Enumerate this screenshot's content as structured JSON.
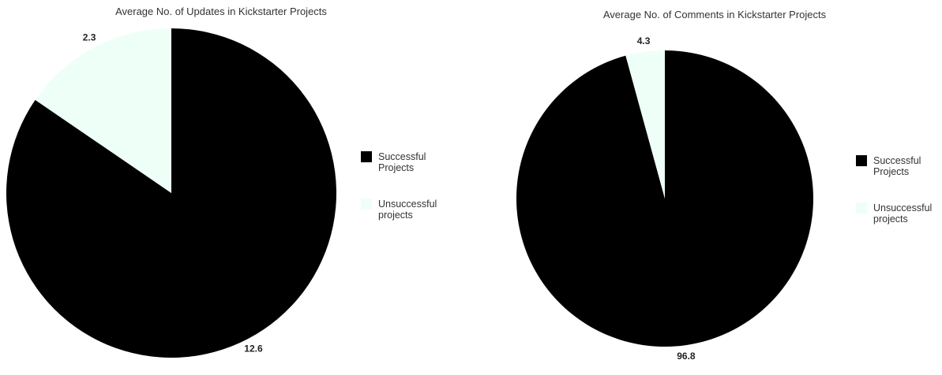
{
  "chart_data": [
    {
      "type": "pie",
      "title": "Average No. of Updates in Kickstarter Projects",
      "categories": [
        "Successful Projects",
        "Unsuccessful projects"
      ],
      "legend_lines": [
        [
          "Successful",
          "Projects"
        ],
        [
          "Unsuccessful",
          "projects"
        ]
      ],
      "values": [
        12.6,
        2.3
      ],
      "value_labels": [
        "12.6",
        "2.3"
      ],
      "colors": [
        "#000000",
        "#eefff8"
      ],
      "legend_position": "right",
      "start": "top",
      "direction": "clockwise"
    },
    {
      "type": "pie",
      "title": "Average No. of Comments in Kickstarter Projects",
      "categories": [
        "Successful Projects",
        "Unsuccessful projects"
      ],
      "legend_lines": [
        [
          "Successful",
          "Projects"
        ],
        [
          "Unsuccessful",
          "projects"
        ]
      ],
      "values": [
        96.8,
        4.3
      ],
      "value_labels": [
        "96.8",
        "4.3"
      ],
      "colors": [
        "#000000",
        "#eefff8"
      ],
      "legend_position": "right",
      "start": "top",
      "direction": "clockwise"
    }
  ]
}
